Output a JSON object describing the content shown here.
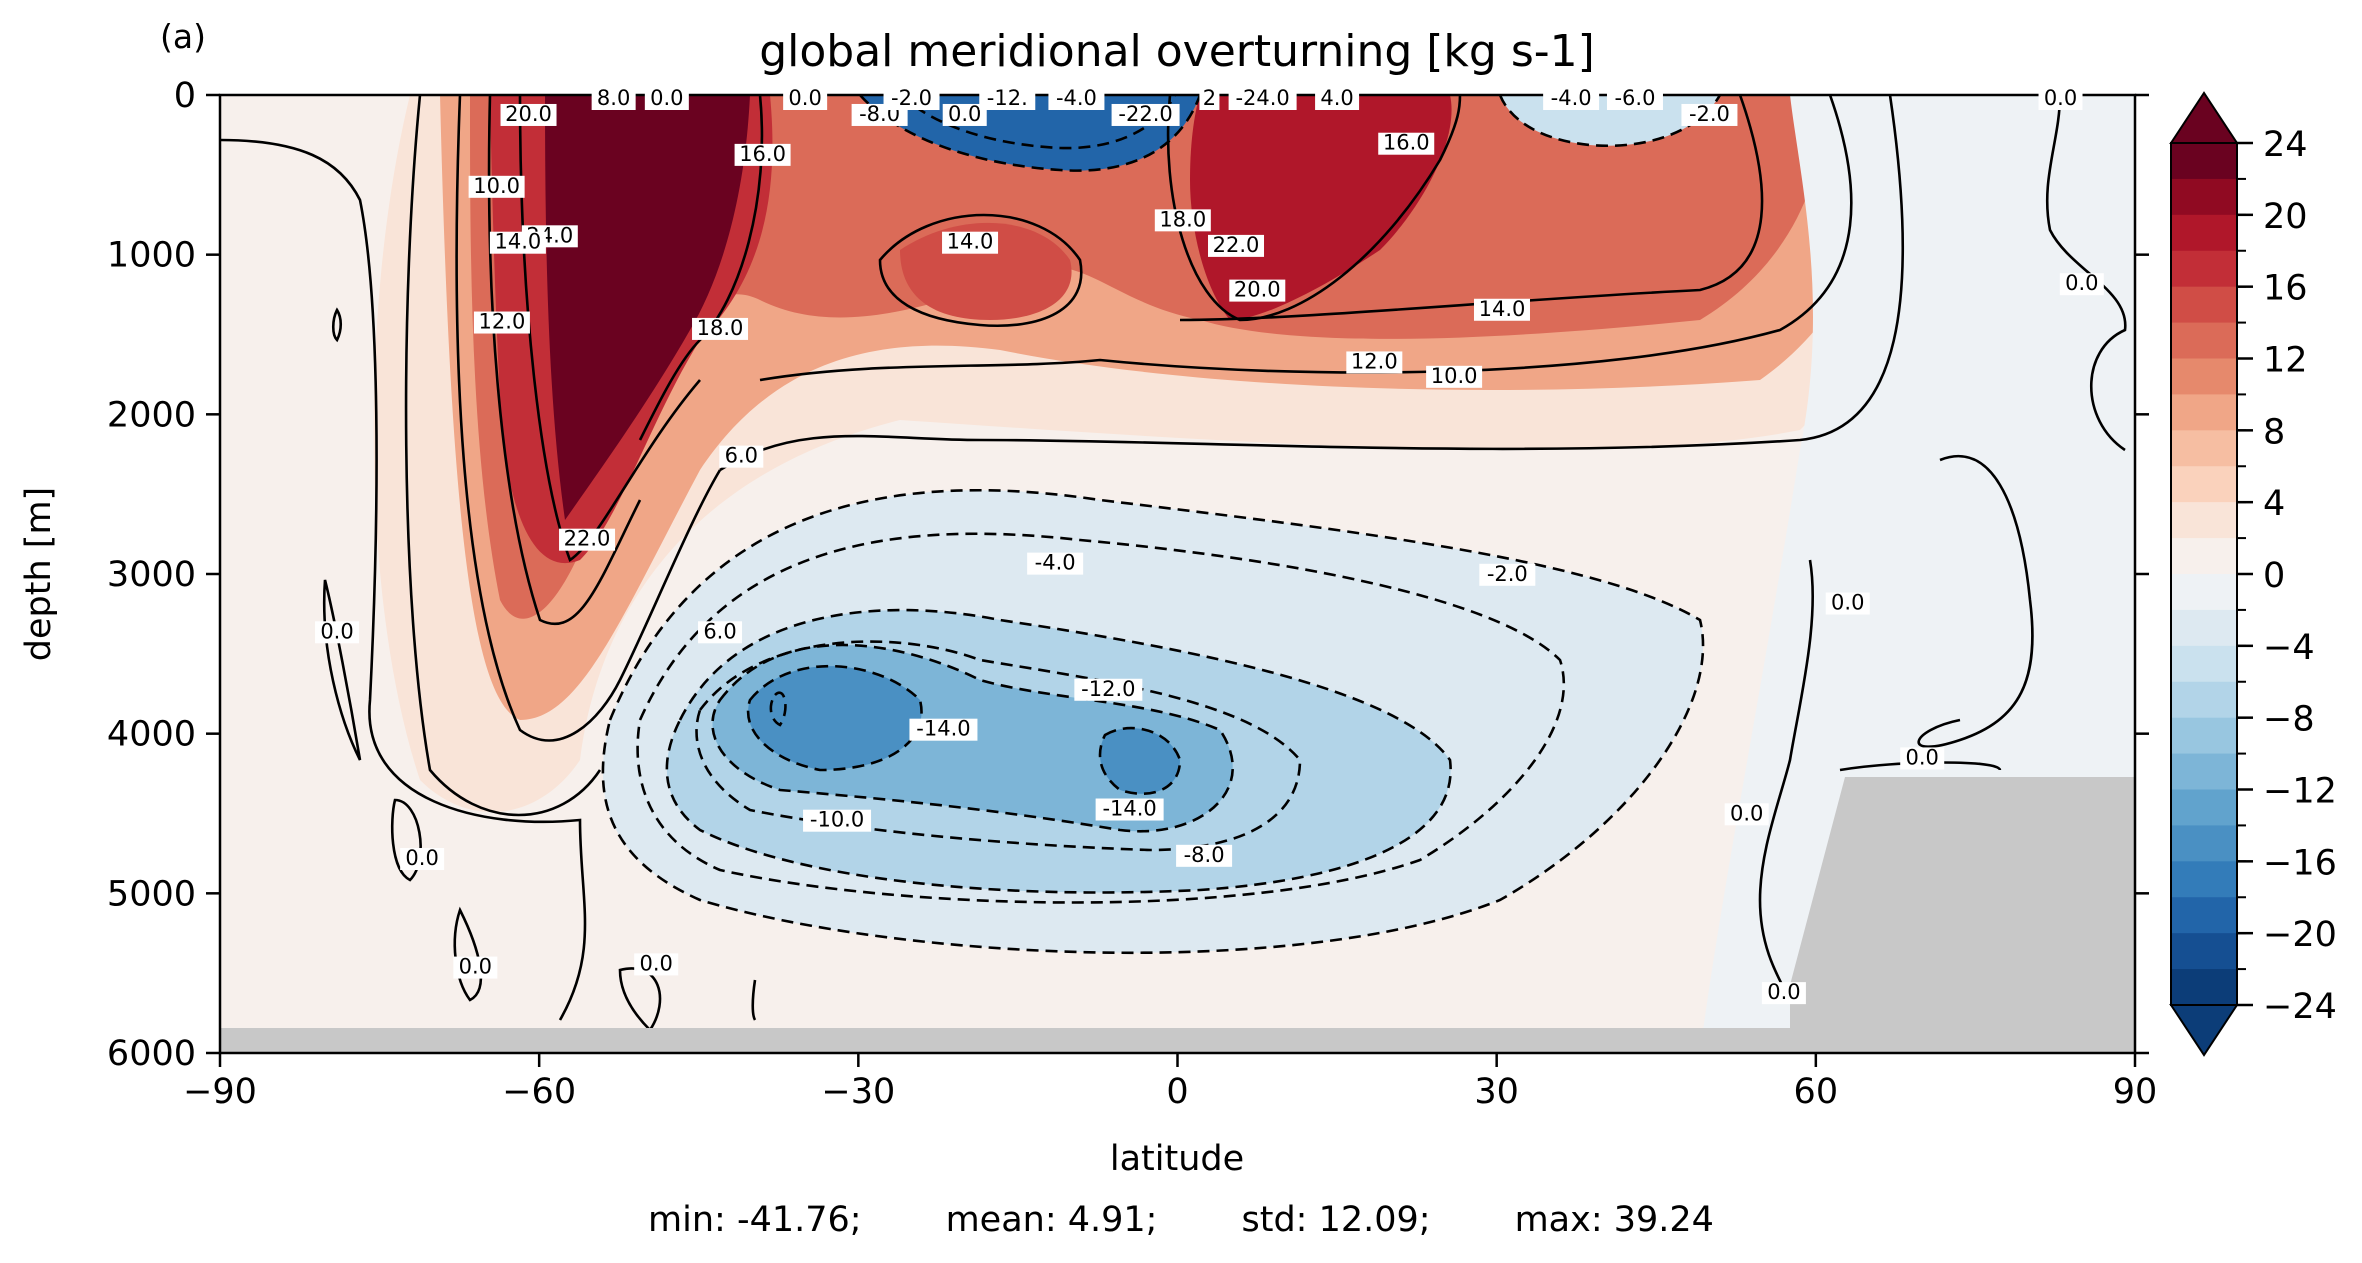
{
  "chart_data": {
    "type": "heatmap",
    "panel_label": "(a)",
    "title": "global meridional overturning [kg s-1]",
    "xlabel": "latitude",
    "ylabel": "depth [m]",
    "xlim": [
      -90,
      90
    ],
    "ylim": [
      6000,
      0
    ],
    "x_ticks": [
      -90,
      -60,
      -30,
      0,
      30,
      60,
      90
    ],
    "x_tick_labels": [
      "−90",
      "−60",
      "−30",
      "0",
      "30",
      "60",
      "90"
    ],
    "y_ticks": [
      0,
      1000,
      2000,
      3000,
      4000,
      5000,
      6000
    ],
    "y_tick_labels": [
      "0",
      "1000",
      "2000",
      "3000",
      "4000",
      "5000",
      "6000"
    ],
    "colorbar": {
      "min": -24,
      "max": 24,
      "step": 2,
      "extend": "both",
      "colormap": "RdBu_r",
      "ticks": [
        24,
        20,
        16,
        12,
        8,
        4,
        0,
        -4,
        -8,
        -12,
        -16,
        -20,
        -24
      ],
      "tick_labels": [
        "24",
        "20",
        "16",
        "12",
        "8",
        "4",
        "0",
        "−4",
        "−8",
        "−12",
        "−16",
        "−20",
        "−24"
      ],
      "colors_high_to_low": [
        "#6a0220",
        "#900a22",
        "#b0172a",
        "#c22e37",
        "#d04d46",
        "#db6b58",
        "#e6896c",
        "#f0a687",
        "#f6bea2",
        "#fad2bc",
        "#f9e4d8",
        "#f7f0ec",
        "#eef2f5",
        "#dde9f1",
        "#cae1ee",
        "#b2d4e8",
        "#98c6e0",
        "#7db5d7",
        "#61a3cd",
        "#4a90c3",
        "#337cb9",
        "#2265a9",
        "#154f92",
        "#0c3d78"
      ]
    },
    "contour_labels": [
      {
        "text": "20.0",
        "lat": -61,
        "depth": 100
      },
      {
        "text": "8.0",
        "lat": -53,
        "depth": 0
      },
      {
        "text": "0.0",
        "lat": -48,
        "depth": 0
      },
      {
        "text": "10.0",
        "lat": -64,
        "depth": 550
      },
      {
        "text": "24.0",
        "lat": -59,
        "depth": 860
      },
      {
        "text": "14.0",
        "lat": -62,
        "depth": 900
      },
      {
        "text": "12.0",
        "lat": -63.5,
        "depth": 1400
      },
      {
        "text": "18.0",
        "lat": -43,
        "depth": 1440
      },
      {
        "text": "16.0",
        "lat": -39,
        "depth": 350
      },
      {
        "text": "6.0",
        "lat": -41,
        "depth": 2240
      },
      {
        "text": "22.0",
        "lat": -55.5,
        "depth": 2760
      },
      {
        "text": "0.0",
        "lat": -79,
        "depth": 3340
      },
      {
        "text": "0.0",
        "lat": -71,
        "depth": 4760
      },
      {
        "text": "0.0",
        "lat": -66,
        "depth": 5440
      },
      {
        "text": "0.0",
        "lat": -49,
        "depth": 5420
      },
      {
        "text": "6.0",
        "lat": -43,
        "depth": 3340
      },
      {
        "text": "-4.0",
        "lat": -11.5,
        "depth": 2910
      },
      {
        "text": "-12.0",
        "lat": -6.5,
        "depth": 3700
      },
      {
        "text": "-14.0",
        "lat": -22,
        "depth": 3950
      },
      {
        "text": "-14.0",
        "lat": -4.5,
        "depth": 4450
      },
      {
        "text": "-10.0",
        "lat": -32,
        "depth": 4520
      },
      {
        "text": "-8.0",
        "lat": 2.5,
        "depth": 4740
      },
      {
        "text": "-2.0",
        "lat": 31,
        "depth": 2980
      },
      {
        "text": "-8.0",
        "lat": -28,
        "depth": 100
      },
      {
        "text": "-2.0",
        "lat": -25,
        "depth": 0
      },
      {
        "text": "0.0",
        "lat": -20,
        "depth": 100
      },
      {
        "text": "0.0",
        "lat": -35,
        "depth": 0
      },
      {
        "text": "-12.",
        "lat": -16,
        "depth": 0
      },
      {
        "text": "-4.0",
        "lat": -9.5,
        "depth": 0
      },
      {
        "text": "-22.0",
        "lat": -3,
        "depth": 100
      },
      {
        "text": "-24.0",
        "lat": 8,
        "depth": 0
      },
      {
        "text": "2",
        "lat": 3,
        "depth": 0
      },
      {
        "text": "4.0",
        "lat": 15,
        "depth": 0
      },
      {
        "text": "14.0",
        "lat": -19.5,
        "depth": 900
      },
      {
        "text": "18.0",
        "lat": 0.5,
        "depth": 760
      },
      {
        "text": "22.0",
        "lat": 5.5,
        "depth": 920
      },
      {
        "text": "20.0",
        "lat": 7.5,
        "depth": 1200
      },
      {
        "text": "16.0",
        "lat": 21.5,
        "depth": 280
      },
      {
        "text": "14.0",
        "lat": 30.5,
        "depth": 1320
      },
      {
        "text": "12.0",
        "lat": 18.5,
        "depth": 1650
      },
      {
        "text": "10.0",
        "lat": 26,
        "depth": 1740
      },
      {
        "text": "-4.0",
        "lat": 37,
        "depth": 0
      },
      {
        "text": "-6.0",
        "lat": 43,
        "depth": 0
      },
      {
        "text": "-2.0",
        "lat": 50,
        "depth": 100
      },
      {
        "text": "0.0",
        "lat": 83,
        "depth": 0
      },
      {
        "text": "0.0",
        "lat": 85,
        "depth": 1160
      },
      {
        "text": "0.0",
        "lat": 63,
        "depth": 3160
      },
      {
        "text": "0.0",
        "lat": 70,
        "depth": 4130
      },
      {
        "text": "0.0",
        "lat": 53.5,
        "depth": 4480
      },
      {
        "text": "0.0",
        "lat": 57,
        "depth": 5600
      }
    ],
    "stats": {
      "min": "min: -41.76;",
      "mean": "mean: 4.91;",
      "std": "std: 12.09;",
      "max": "max: 39.24"
    }
  }
}
